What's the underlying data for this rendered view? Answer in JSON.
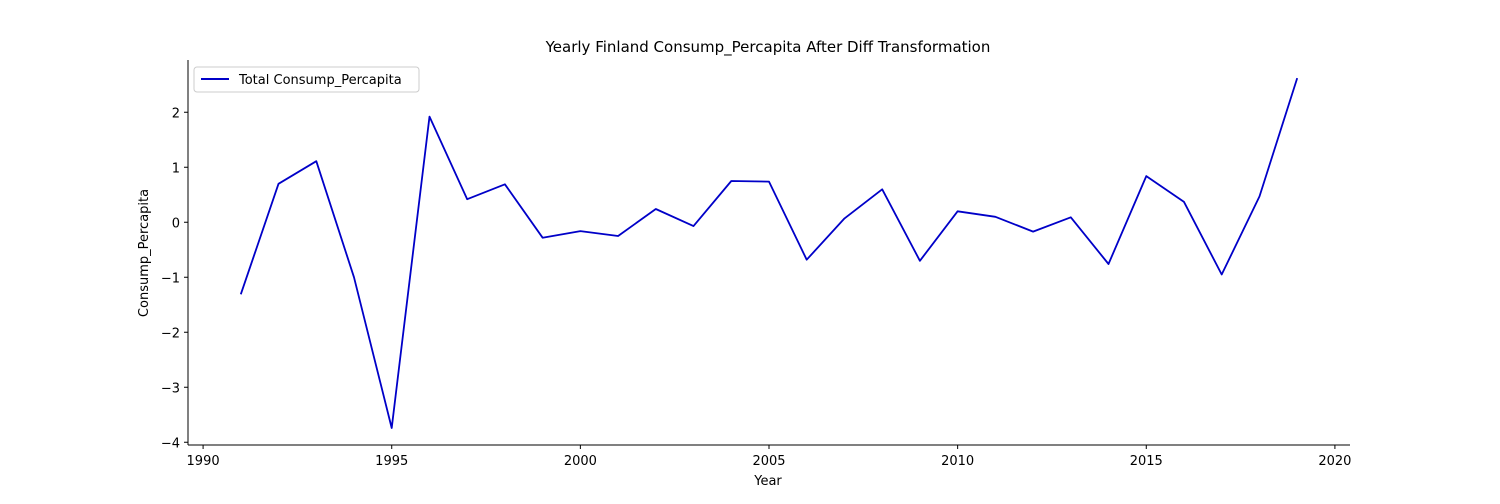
{
  "chart_data": {
    "type": "line",
    "title": "Yearly Finland Consump_Percapita After Diff Transformation",
    "xlabel": "Year",
    "ylabel": "Consump_Percapita",
    "xlim": [
      1989.6,
      2020.4
    ],
    "ylim": [
      -4.05,
      2.95
    ],
    "xticks": [
      1990,
      1995,
      2000,
      2005,
      2010,
      2015,
      2020
    ],
    "yticks": [
      -4,
      -3,
      -2,
      -1,
      0,
      1,
      2
    ],
    "grid": false,
    "legend_position": "top-left",
    "series": [
      {
        "name": "Total Consump_Percapita",
        "color": "#0000c8",
        "x": [
          1991,
          1992,
          1993,
          1994,
          1995,
          1996,
          1997,
          1998,
          1999,
          2000,
          2001,
          2002,
          2003,
          2004,
          2005,
          2006,
          2007,
          2008,
          2009,
          2010,
          2011,
          2012,
          2013,
          2014,
          2015,
          2016,
          2017,
          2018,
          2019
        ],
        "values": [
          -1.31,
          0.7,
          1.11,
          -1.0,
          -3.74,
          1.92,
          0.42,
          0.69,
          -0.28,
          -0.16,
          -0.25,
          0.24,
          -0.07,
          0.75,
          0.74,
          -0.68,
          0.07,
          0.6,
          -0.7,
          0.2,
          0.1,
          -0.17,
          0.09,
          -0.76,
          0.84,
          0.37,
          -0.95,
          0.47,
          2.62
        ]
      }
    ]
  }
}
